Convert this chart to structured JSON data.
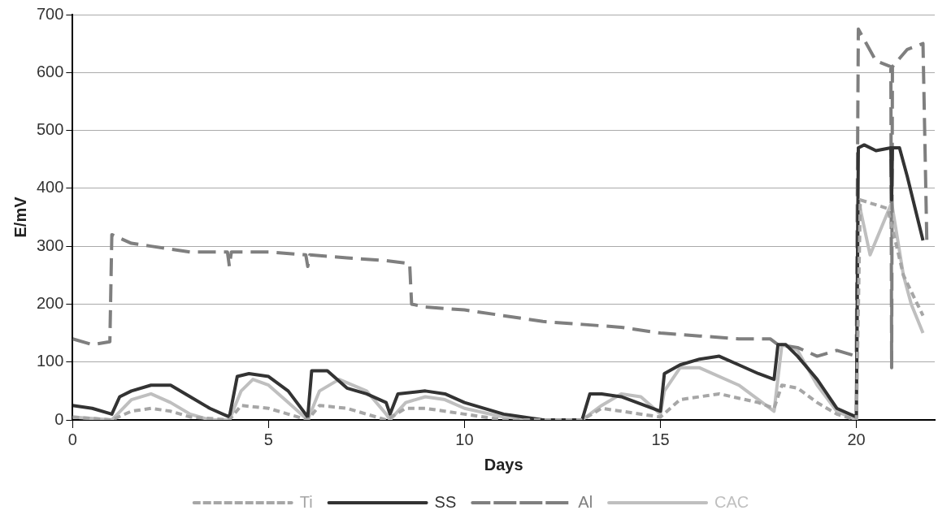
{
  "chart_data": {
    "type": "line",
    "xlabel": "Days",
    "ylabel": "E/mV",
    "xlim": [
      0,
      22
    ],
    "ylim": [
      0,
      700
    ],
    "xticks": [
      0,
      5,
      10,
      15,
      20
    ],
    "yticks": [
      0,
      100,
      200,
      300,
      400,
      500,
      600,
      700
    ],
    "grid": "y",
    "legend": "bottom",
    "marker": "none",
    "series": [
      {
        "name": "Ti",
        "color": "#a6a6a6",
        "line_style": "dotted",
        "x": [
          0,
          1,
          1.5,
          2,
          2.5,
          3,
          4,
          4.3,
          5,
          5.5,
          6,
          6.3,
          7,
          7.5,
          8,
          8.5,
          9,
          10,
          11,
          13,
          13.5,
          14,
          15,
          15.5,
          16.5,
          17.5,
          17.9,
          18.1,
          18.5,
          19,
          19.5,
          20,
          20.1,
          20.8,
          21.2,
          21.7
        ],
        "values": [
          5,
          0,
          15,
          20,
          15,
          5,
          0,
          25,
          20,
          10,
          0,
          25,
          20,
          10,
          0,
          20,
          20,
          10,
          0,
          0,
          20,
          15,
          5,
          35,
          45,
          30,
          20,
          60,
          55,
          30,
          10,
          0,
          380,
          365,
          250,
          180
        ]
      },
      {
        "name": "SS",
        "color": "#333333",
        "line_style": "solid",
        "x": [
          0,
          0.5,
          1,
          1.2,
          1.5,
          2,
          2.5,
          3,
          3.5,
          4,
          4.2,
          4.5,
          5,
          5.5,
          6,
          6.1,
          6.5,
          7,
          7.5,
          8,
          8.1,
          8.3,
          9,
          9.5,
          10,
          11,
          12,
          13,
          13.2,
          13.5,
          14,
          15,
          15.1,
          15.5,
          16,
          16.5,
          17,
          17.5,
          17.9,
          18,
          18.2,
          18.5,
          19,
          19.5,
          20,
          20.05,
          20.2,
          20.5,
          20.88,
          20.9,
          20.92,
          21.1,
          21.3,
          21.7
        ],
        "values": [
          25,
          20,
          10,
          40,
          50,
          60,
          60,
          40,
          20,
          5,
          75,
          80,
          75,
          50,
          5,
          85,
          85,
          55,
          45,
          30,
          10,
          45,
          50,
          45,
          30,
          10,
          0,
          0,
          45,
          45,
          40,
          15,
          80,
          95,
          105,
          110,
          95,
          80,
          70,
          130,
          130,
          110,
          70,
          20,
          5,
          470,
          475,
          465,
          470,
          380,
          470,
          470,
          420,
          310
        ]
      },
      {
        "name": "Al",
        "color": "#7f7f7f",
        "line_style": "dashed",
        "x": [
          0,
          0.5,
          0.95,
          1,
          1.5,
          2,
          3,
          3.95,
          4,
          4.05,
          5,
          5.95,
          6,
          6.05,
          7,
          8,
          8.6,
          8.65,
          9,
          10,
          11,
          12,
          13,
          14,
          15,
          16,
          17,
          17.8,
          18,
          18.5,
          19,
          19.5,
          20,
          20.05,
          20.5,
          20.88,
          20.9,
          20.92,
          21.3,
          21.7,
          21.8
        ],
        "values": [
          140,
          130,
          135,
          320,
          305,
          300,
          290,
          290,
          265,
          290,
          290,
          285,
          265,
          285,
          280,
          275,
          270,
          200,
          195,
          190,
          180,
          170,
          165,
          160,
          150,
          145,
          140,
          140,
          130,
          125,
          110,
          120,
          110,
          675,
          620,
          610,
          90,
          610,
          640,
          650,
          300
        ]
      },
      {
        "name": "CAC",
        "color": "#bfbfbf",
        "line_style": "solid",
        "x": [
          0,
          1,
          1.5,
          2,
          2.5,
          3,
          3.5,
          4,
          4.3,
          4.6,
          5,
          5.5,
          6,
          6.3,
          6.8,
          7.5,
          8,
          8.1,
          8.5,
          9,
          9.5,
          10,
          11,
          12,
          13,
          13.5,
          14,
          14.5,
          15,
          15.1,
          15.5,
          16,
          17,
          17.9,
          18.1,
          18.5,
          19,
          19.5,
          20,
          20.05,
          20.35,
          20.9,
          21.2,
          21.4,
          21.7
        ],
        "values": [
          5,
          0,
          35,
          45,
          30,
          10,
          0,
          0,
          50,
          70,
          60,
          30,
          0,
          50,
          70,
          50,
          10,
          0,
          30,
          40,
          35,
          20,
          5,
          0,
          0,
          25,
          45,
          40,
          10,
          50,
          90,
          90,
          60,
          15,
          130,
          120,
          60,
          15,
          0,
          380,
          285,
          375,
          250,
          200,
          150
        ]
      }
    ]
  }
}
